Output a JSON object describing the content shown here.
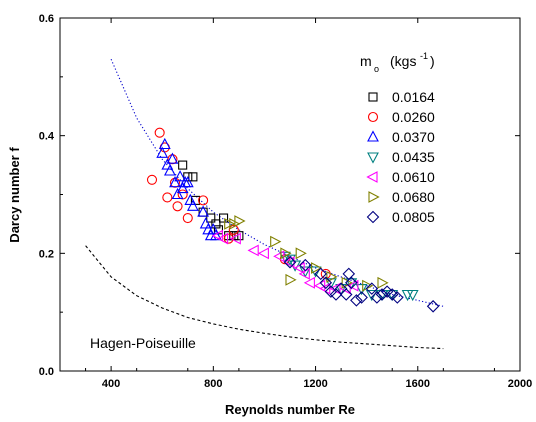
{
  "chart_data": {
    "type": "scatter",
    "xlabel": "Reynolds number Re",
    "ylabel": "Darcy number f",
    "xlim": [
      200,
      2000
    ],
    "ylim": [
      0.0,
      0.6
    ],
    "x_ticks": [
      400,
      800,
      1200,
      1600,
      2000
    ],
    "x_tick_labels": [
      "400",
      "800",
      "1200",
      "1600",
      "2000"
    ],
    "y_ticks": [
      0.0,
      0.2,
      0.4,
      0.6
    ],
    "y_tick_labels": [
      "0.0",
      "0.2",
      "0.4",
      "0.6"
    ],
    "grid": false,
    "legend": {
      "title_main": "m",
      "title_sub": "o",
      "title_unit": "(kgs",
      "title_exp": "-1",
      "title_close": ")",
      "placement": "top-right"
    },
    "series": [
      {
        "name": "0.0164",
        "marker": "square",
        "color": "#000000",
        "points": [
          [
            680,
            0.35
          ],
          [
            700,
            0.33
          ],
          [
            720,
            0.33
          ],
          [
            730,
            0.29
          ],
          [
            760,
            0.27
          ],
          [
            790,
            0.26
          ],
          [
            810,
            0.25
          ],
          [
            820,
            0.24
          ],
          [
            840,
            0.26
          ],
          [
            860,
            0.23
          ],
          [
            880,
            0.23
          ],
          [
            900,
            0.23
          ]
        ]
      },
      {
        "name": "0.0260",
        "marker": "circle",
        "color": "#ff0000",
        "points": [
          [
            560,
            0.325
          ],
          [
            590,
            0.405
          ],
          [
            610,
            0.38
          ],
          [
            620,
            0.295
          ],
          [
            640,
            0.36
          ],
          [
            650,
            0.32
          ],
          [
            660,
            0.28
          ],
          [
            680,
            0.3
          ],
          [
            700,
            0.26
          ],
          [
            760,
            0.29
          ],
          [
            860,
            0.225
          ],
          [
            880,
            0.24
          ],
          [
            1080,
            0.19
          ],
          [
            1240,
            0.165
          ]
        ]
      },
      {
        "name": "0.0370",
        "marker": "triangle-up",
        "color": "#0000ff",
        "points": [
          [
            600,
            0.37
          ],
          [
            610,
            0.385
          ],
          [
            620,
            0.35
          ],
          [
            630,
            0.34
          ],
          [
            640,
            0.36
          ],
          [
            650,
            0.32
          ],
          [
            660,
            0.3
          ],
          [
            670,
            0.33
          ],
          [
            680,
            0.31
          ],
          [
            690,
            0.32
          ],
          [
            700,
            0.32
          ],
          [
            710,
            0.29
          ],
          [
            720,
            0.28
          ],
          [
            760,
            0.27
          ],
          [
            770,
            0.25
          ],
          [
            780,
            0.24
          ],
          [
            790,
            0.23
          ],
          [
            800,
            0.24
          ],
          [
            810,
            0.23
          ]
        ]
      },
      {
        "name": "0.0435",
        "marker": "triangle-down",
        "color": "#008080",
        "points": [
          [
            1080,
            0.195
          ],
          [
            1100,
            0.19
          ],
          [
            1120,
            0.18
          ],
          [
            1160,
            0.17
          ],
          [
            1200,
            0.17
          ],
          [
            1260,
            0.15
          ],
          [
            1300,
            0.14
          ],
          [
            1340,
            0.15
          ],
          [
            1380,
            0.14
          ],
          [
            1420,
            0.13
          ],
          [
            1460,
            0.13
          ],
          [
            1500,
            0.13
          ],
          [
            1560,
            0.13
          ],
          [
            1580,
            0.13
          ]
        ]
      },
      {
        "name": "0.0610",
        "marker": "triangle-left",
        "color": "#ff00ff",
        "points": [
          [
            820,
            0.23
          ],
          [
            840,
            0.225
          ],
          [
            890,
            0.225
          ],
          [
            960,
            0.205
          ],
          [
            1000,
            0.2
          ],
          [
            1060,
            0.195
          ],
          [
            1100,
            0.185
          ],
          [
            1140,
            0.175
          ],
          [
            1160,
            0.165
          ],
          [
            1180,
            0.15
          ],
          [
            1220,
            0.145
          ],
          [
            1240,
            0.14
          ],
          [
            1280,
            0.14
          ],
          [
            1320,
            0.14
          ],
          [
            1350,
            0.145
          ]
        ]
      },
      {
        "name": "0.0680",
        "marker": "triangle-right",
        "color": "#808000",
        "points": [
          [
            860,
            0.25
          ],
          [
            880,
            0.25
          ],
          [
            900,
            0.255
          ],
          [
            1040,
            0.22
          ],
          [
            1080,
            0.2
          ],
          [
            1100,
            0.155
          ],
          [
            1140,
            0.2
          ],
          [
            1200,
            0.175
          ],
          [
            1260,
            0.16
          ],
          [
            1320,
            0.15
          ],
          [
            1400,
            0.145
          ],
          [
            1460,
            0.15
          ]
        ]
      },
      {
        "name": "0.0805",
        "marker": "diamond",
        "color": "#000080",
        "points": [
          [
            1100,
            0.185
          ],
          [
            1160,
            0.18
          ],
          [
            1220,
            0.165
          ],
          [
            1240,
            0.15
          ],
          [
            1260,
            0.135
          ],
          [
            1280,
            0.13
          ],
          [
            1300,
            0.14
          ],
          [
            1320,
            0.13
          ],
          [
            1330,
            0.165
          ],
          [
            1340,
            0.15
          ],
          [
            1360,
            0.12
          ],
          [
            1380,
            0.125
          ],
          [
            1420,
            0.14
          ],
          [
            1440,
            0.125
          ],
          [
            1460,
            0.13
          ],
          [
            1480,
            0.135
          ],
          [
            1500,
            0.13
          ],
          [
            1520,
            0.125
          ],
          [
            1660,
            0.11
          ]
        ]
      }
    ],
    "curves": [
      {
        "name": "fit",
        "style": "dotted",
        "color": "#0000cc",
        "points": [
          [
            400,
            0.53
          ],
          [
            500,
            0.43
          ],
          [
            600,
            0.36
          ],
          [
            700,
            0.31
          ],
          [
            800,
            0.27
          ],
          [
            900,
            0.24
          ],
          [
            1000,
            0.215
          ],
          [
            1100,
            0.195
          ],
          [
            1200,
            0.175
          ],
          [
            1300,
            0.16
          ],
          [
            1400,
            0.145
          ],
          [
            1500,
            0.13
          ],
          [
            1600,
            0.12
          ],
          [
            1700,
            0.11
          ]
        ]
      },
      {
        "name": "Hagen-Poiseuille",
        "style": "dashed",
        "color": "#000000",
        "points": [
          [
            300,
            0.213
          ],
          [
            400,
            0.16
          ],
          [
            500,
            0.128
          ],
          [
            600,
            0.107
          ],
          [
            700,
            0.091
          ],
          [
            800,
            0.08
          ],
          [
            900,
            0.071
          ],
          [
            1000,
            0.064
          ],
          [
            1100,
            0.058
          ],
          [
            1200,
            0.053
          ],
          [
            1300,
            0.049
          ],
          [
            1400,
            0.046
          ],
          [
            1500,
            0.043
          ],
          [
            1600,
            0.04
          ],
          [
            1700,
            0.038
          ]
        ]
      }
    ],
    "annotations": [
      {
        "text": "Hagen-Poiseuille",
        "x": 490,
        "y": 0.085
      }
    ]
  }
}
